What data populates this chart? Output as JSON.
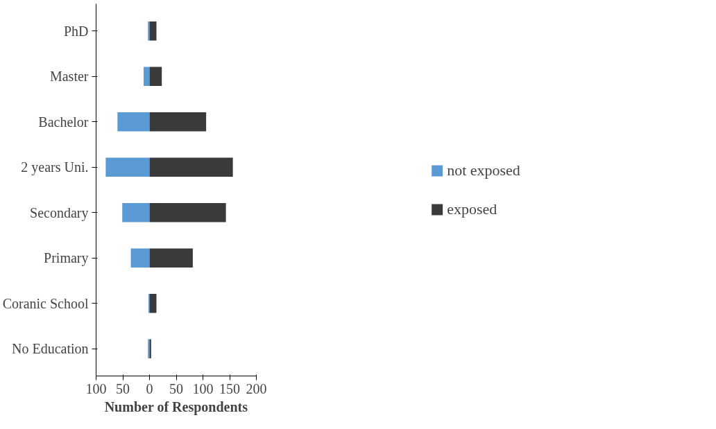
{
  "chart_data": {
    "type": "bar",
    "orientation": "horizontal",
    "xlabel": "Number of Respondents",
    "categories": [
      "PhD",
      "Master",
      "Bachelor",
      "2 years Uni.",
      "Secondary",
      "Primary",
      "Coranic School",
      "No Education"
    ],
    "series": [
      {
        "name": "not exposed",
        "color": "#5b9bd5",
        "values": [
          -3,
          -11,
          -60,
          -82,
          -51,
          -35,
          -2,
          -3
        ]
      },
      {
        "name": "exposed",
        "color": "#3a3a3a",
        "values": [
          13,
          23,
          106,
          156,
          143,
          81,
          13,
          3
        ]
      }
    ],
    "xlim": [
      -100,
      200
    ],
    "xticks": [
      {
        "value": -100,
        "label": "100"
      },
      {
        "value": -50,
        "label": "50"
      },
      0,
      50,
      100,
      150,
      200
    ],
    "stacked": true,
    "grid": false,
    "legend": "right"
  }
}
